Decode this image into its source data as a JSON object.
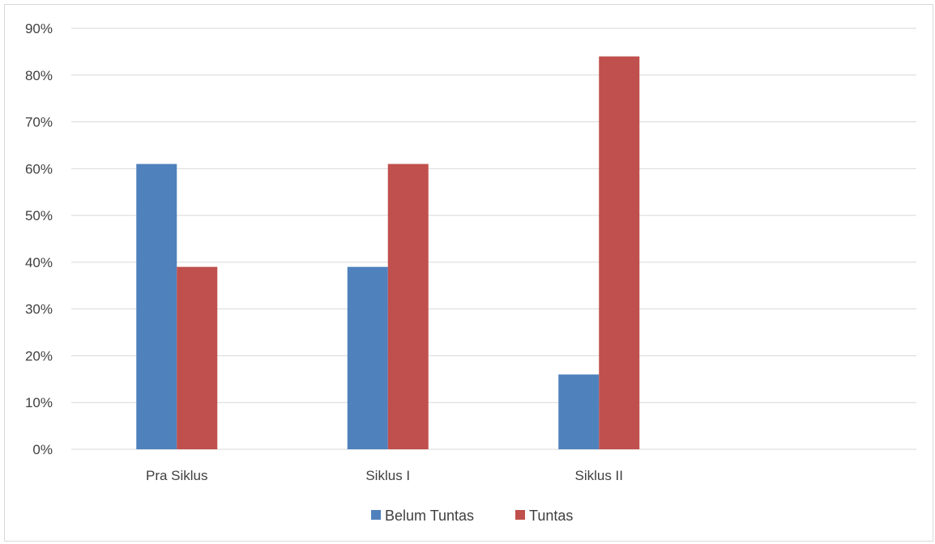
{
  "chart_data": {
    "type": "bar",
    "categories": [
      "Pra Siklus",
      "Siklus I",
      "Siklus II"
    ],
    "series": [
      {
        "name": "Belum Tuntas",
        "values": [
          61,
          39,
          16
        ],
        "color": "#4f81bd"
      },
      {
        "name": "Tuntas",
        "values": [
          39,
          61,
          84
        ],
        "color": "#c0504d"
      }
    ],
    "ylim": [
      0,
      90
    ],
    "yticks": [
      "0%",
      "10%",
      "20%",
      "30%",
      "40%",
      "50%",
      "60%",
      "70%",
      "80%",
      "90%"
    ],
    "value_format": "percent",
    "grid": true,
    "legend_position": "bottom"
  }
}
